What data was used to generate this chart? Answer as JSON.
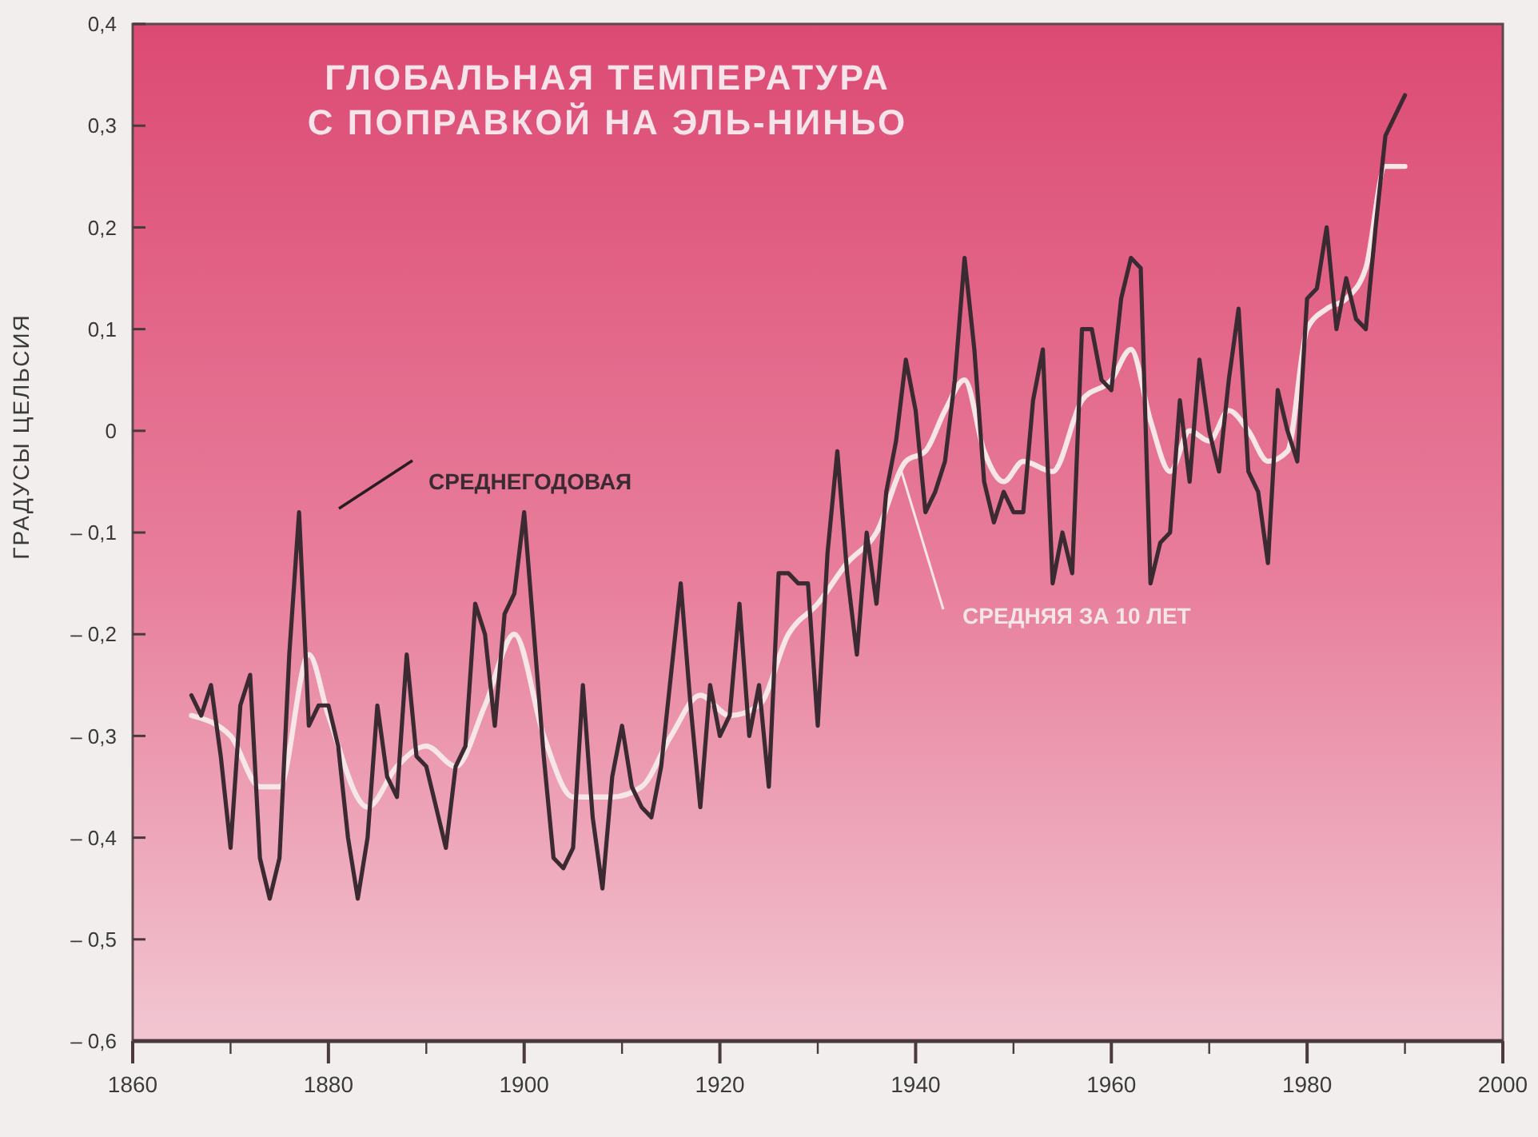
{
  "chart_data": {
    "type": "line",
    "title": "ГЛОБАЛЬНАЯ ТЕМПЕРАТУРА",
    "subtitle": "С ПОПРАВКОЙ НА ЭЛЬ-НИНЬО",
    "ylabel": "ГРАДУСЫ ЦЕЛЬСИЯ",
    "xlim": [
      1860,
      2000
    ],
    "xticks": [
      1860,
      {
        "value": 1870,
        "label": null
      },
      1880,
      {
        "value": 1890,
        "label": null
      },
      1900,
      {
        "value": 1910,
        "label": null
      },
      1920,
      {
        "value": 1930,
        "label": null
      },
      1940,
      {
        "value": 1950,
        "label": null
      },
      1960,
      {
        "value": 1970,
        "label": null
      },
      1980,
      {
        "value": 1990,
        "label": null
      },
      2000
    ],
    "ylim": [
      -0.6,
      0.4
    ],
    "yticks": [
      {
        "value": -0.6,
        "label": "– 0,6"
      },
      {
        "value": -0.5,
        "label": "– 0,5"
      },
      {
        "value": -0.4,
        "label": "– 0,4"
      },
      {
        "value": -0.3,
        "label": "– 0,3"
      },
      {
        "value": -0.2,
        "label": "– 0,2"
      },
      {
        "value": -0.1,
        "label": "– 0,1"
      },
      0,
      {
        "value": 0.1,
        "label": "0,1"
      },
      {
        "value": 0.2,
        "label": "0,2"
      },
      {
        "value": 0.3,
        "label": "0,3"
      },
      {
        "value": 0.4,
        "label": "0,4"
      }
    ],
    "grid": false,
    "legend": false,
    "marker": "none",
    "line_style": "solid",
    "series": [
      {
        "name": "СРЕДНЕГОДОВАЯ",
        "color": "#3b2a32",
        "x": [
          1866,
          1867,
          1868,
          1869,
          1870,
          1871,
          1872,
          1873,
          1874,
          1875,
          1876,
          1877,
          1878,
          1879,
          1880,
          1881,
          1882,
          1883,
          1884,
          1885,
          1886,
          1887,
          1888,
          1889,
          1890,
          1891,
          1892,
          1893,
          1894,
          1895,
          1896,
          1897,
          1898,
          1899,
          1900,
          1901,
          1902,
          1903,
          1904,
          1905,
          1906,
          1907,
          1908,
          1909,
          1910,
          1911,
          1912,
          1913,
          1914,
          1915,
          1916,
          1917,
          1918,
          1919,
          1920,
          1921,
          1922,
          1923,
          1924,
          1925,
          1926,
          1927,
          1928,
          1929,
          1930,
          1931,
          1932,
          1933,
          1934,
          1935,
          1936,
          1937,
          1938,
          1939,
          1940,
          1941,
          1942,
          1943,
          1944,
          1945,
          1946,
          1947,
          1948,
          1949,
          1950,
          1951,
          1952,
          1953,
          1954,
          1955,
          1956,
          1957,
          1958,
          1959,
          1960,
          1961,
          1962,
          1963,
          1964,
          1965,
          1966,
          1967,
          1968,
          1969,
          1970,
          1971,
          1972,
          1973,
          1974,
          1975,
          1976,
          1977,
          1978,
          1979,
          1980,
          1981,
          1982,
          1983,
          1984,
          1985,
          1986,
          1987,
          1988,
          1989,
          1990
        ],
        "values": [
          -0.26,
          -0.28,
          -0.25,
          -0.32,
          -0.41,
          -0.27,
          -0.24,
          -0.42,
          -0.46,
          -0.42,
          -0.22,
          -0.08,
          -0.29,
          -0.27,
          -0.27,
          -0.31,
          -0.4,
          -0.46,
          -0.4,
          -0.27,
          -0.34,
          -0.36,
          -0.22,
          -0.32,
          -0.33,
          -0.37,
          -0.41,
          -0.33,
          -0.31,
          -0.17,
          -0.2,
          -0.29,
          -0.18,
          -0.16,
          -0.08,
          -0.2,
          -0.32,
          -0.42,
          -0.43,
          -0.41,
          -0.25,
          -0.38,
          -0.45,
          -0.34,
          -0.29,
          -0.35,
          -0.37,
          -0.38,
          -0.33,
          -0.24,
          -0.15,
          -0.27,
          -0.37,
          -0.25,
          -0.3,
          -0.28,
          -0.17,
          -0.3,
          -0.25,
          -0.35,
          -0.14,
          -0.14,
          -0.15,
          -0.15,
          -0.29,
          -0.12,
          -0.02,
          -0.14,
          -0.22,
          -0.1,
          -0.17,
          -0.06,
          -0.01,
          0.07,
          0.02,
          -0.08,
          -0.06,
          -0.03,
          0.05,
          0.17,
          0.08,
          -0.05,
          -0.09,
          -0.06,
          -0.08,
          -0.08,
          0.03,
          0.08,
          -0.15,
          -0.1,
          -0.14,
          0.1,
          0.1,
          0.05,
          0.04,
          0.13,
          0.17,
          0.16,
          -0.15,
          -0.11,
          -0.1,
          0.03,
          -0.05,
          0.07,
          0,
          -0.04,
          0.05,
          0.12,
          -0.04,
          -0.06,
          -0.13,
          0.04,
          0,
          -0.03,
          0.13,
          0.14,
          0.2,
          0.1,
          0.15,
          0.11,
          0.1,
          0.2,
          0.29,
          0.31,
          0.33
        ]
      },
      {
        "name": "СРЕДНЯЯ ЗА 10 ЛЕТ",
        "color": "#f6e6e8",
        "x": [
          1866,
          1870,
          1873,
          1875,
          1878,
          1880,
          1884,
          1887,
          1890,
          1893,
          1896,
          1899,
          1902,
          1905,
          1909,
          1912,
          1915,
          1918,
          1921,
          1924,
          1927,
          1930,
          1933,
          1936,
          1939,
          1941,
          1943,
          1945,
          1947,
          1949,
          1951,
          1954,
          1957,
          1960,
          1962,
          1964,
          1966,
          1968,
          1970,
          1972,
          1974,
          1976,
          1978,
          1980,
          1982,
          1984,
          1986,
          1988,
          1990
        ],
        "values": [
          -0.28,
          -0.3,
          -0.35,
          -0.35,
          -0.22,
          -0.28,
          -0.37,
          -0.33,
          -0.31,
          -0.33,
          -0.27,
          -0.2,
          -0.3,
          -0.36,
          -0.36,
          -0.35,
          -0.3,
          -0.26,
          -0.28,
          -0.27,
          -0.2,
          -0.17,
          -0.13,
          -0.1,
          -0.03,
          -0.02,
          0.02,
          0.05,
          -0.02,
          -0.05,
          -0.03,
          -0.04,
          0.03,
          0.05,
          0.08,
          0.01,
          -0.04,
          0,
          -0.01,
          0.02,
          0,
          -0.03,
          -0.02,
          0.1,
          0.12,
          0.13,
          0.16,
          0.26,
          0.26
        ]
      }
    ]
  }
}
